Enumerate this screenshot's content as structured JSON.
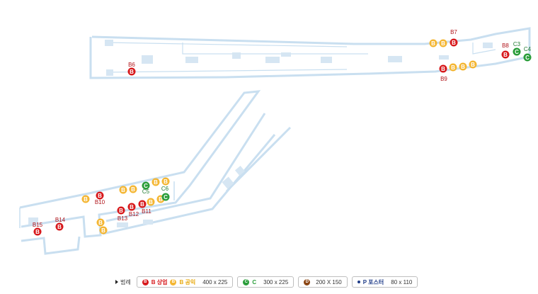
{
  "colors": {
    "wall": "#c9dff0",
    "wall_stroke": "#b6d3ea",
    "B": "#d7191c",
    "B_public": "#f4b633",
    "C": "#2a9d3a",
    "D": "#8b4513",
    "P": "#1f3c88",
    "stair": "#d6e6f3"
  },
  "map": {
    "markers": [
      {
        "id": "B6",
        "type": "B",
        "label": "B6"
      },
      {
        "id": "B7",
        "type": "B",
        "label": "B7"
      },
      {
        "id": "B8",
        "type": "B",
        "label": "B8"
      },
      {
        "id": "B9",
        "type": "B",
        "label": "B9"
      },
      {
        "id": "B10",
        "type": "B",
        "label": "B10"
      },
      {
        "id": "B11",
        "type": "B",
        "label": "B11"
      },
      {
        "id": "B12",
        "type": "B",
        "label": "B12"
      },
      {
        "id": "B13",
        "type": "B",
        "label": "B13"
      },
      {
        "id": "B14",
        "type": "B",
        "label": "B14"
      },
      {
        "id": "B15",
        "type": "B",
        "label": "B15"
      },
      {
        "id": "C3",
        "type": "C",
        "label": "C3"
      },
      {
        "id": "C4",
        "type": "C",
        "label": "C4"
      },
      {
        "id": "C5",
        "type": "C",
        "label": "C5"
      },
      {
        "id": "C6",
        "type": "C",
        "label": "C6"
      }
    ],
    "badge_letters": {
      "B": "B",
      "C": "C"
    }
  },
  "legend": {
    "title": "범례",
    "items": [
      {
        "icon_letter": "B",
        "label_a": "B 상업",
        "icon2_letter": "B",
        "label_b": "B 공익",
        "size": "400 x 225"
      },
      {
        "icon_letter": "C",
        "label": "C",
        "size": "300 x 225"
      },
      {
        "icon_letter": "D",
        "size": "200 X 150"
      },
      {
        "icon_letter": "P",
        "label": "P 포스터",
        "size": "80 x 110"
      }
    ]
  }
}
